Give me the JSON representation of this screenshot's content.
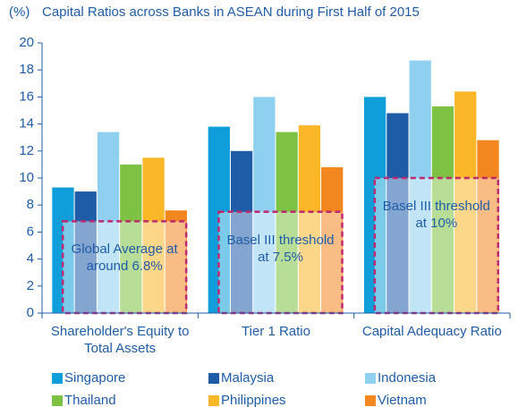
{
  "chart_data": {
    "type": "bar",
    "title": "Capital Ratios across Banks in ASEAN during First Half of 2015",
    "y_unit_label": "(%)",
    "categories": [
      "Shareholder's Equity to Total Assets",
      "Tier 1 Ratio",
      "Capital Adequacy Ratio"
    ],
    "series": [
      {
        "name": "Singapore",
        "color": "#0f9ed9",
        "values": [
          9.3,
          13.8,
          16.0
        ]
      },
      {
        "name": "Malaysia",
        "color": "#1f5ca8",
        "values": [
          9.0,
          12.0,
          14.8
        ]
      },
      {
        "name": "Indonesia",
        "color": "#8fd0f0",
        "values": [
          13.4,
          16.0,
          18.7
        ]
      },
      {
        "name": "Thailand",
        "color": "#7dc242",
        "values": [
          11.0,
          13.4,
          15.3
        ]
      },
      {
        "name": "Philippines",
        "color": "#fbb728",
        "values": [
          11.5,
          13.9,
          16.4
        ]
      },
      {
        "name": "Vietnam",
        "color": "#f2861f",
        "values": [
          7.6,
          10.8,
          12.8
        ]
      }
    ],
    "annotations": [
      {
        "text": "Global Average at around 6.8%",
        "value": 6.8
      },
      {
        "text": "Basel III threshold at 7.5%",
        "value": 7.5
      },
      {
        "text": "Basel III threshold at 10%",
        "value": 10
      }
    ],
    "annotation_color": "#c0286e",
    "ylim": [
      0,
      20
    ],
    "yticks": [
      0,
      2,
      4,
      6,
      8,
      10,
      12,
      14,
      16,
      18,
      20
    ]
  }
}
